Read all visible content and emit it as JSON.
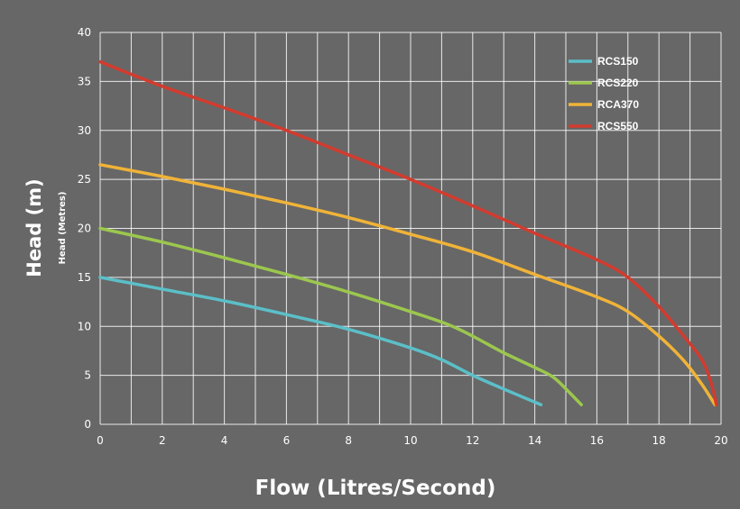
{
  "chart_data": {
    "type": "line",
    "xlabel": "Flow (Litres/Second)",
    "ylabel": "Head (m)",
    "ylabel_secondary": "Head (Metres)",
    "xlim": [
      0,
      20
    ],
    "ylim": [
      0,
      40
    ],
    "x_ticks": [
      0,
      2,
      4,
      6,
      8,
      10,
      12,
      14,
      16,
      18,
      20
    ],
    "y_ticks": [
      0,
      5,
      10,
      15,
      20,
      25,
      30,
      35,
      40
    ],
    "grid": true,
    "legend_position": "top-right",
    "series": [
      {
        "name": "RCS150",
        "color": "#5bbfc8",
        "points": [
          [
            0,
            15
          ],
          [
            2,
            13.8
          ],
          [
            4,
            12.6
          ],
          [
            6,
            11.2
          ],
          [
            8,
            9.7
          ],
          [
            10,
            7.8
          ],
          [
            11,
            6.6
          ],
          [
            12,
            5
          ],
          [
            13,
            3.6
          ],
          [
            14.2,
            2
          ]
        ]
      },
      {
        "name": "RCS220",
        "color": "#9cc74e",
        "points": [
          [
            0,
            20
          ],
          [
            2,
            18.6
          ],
          [
            4,
            17
          ],
          [
            6,
            15.3
          ],
          [
            8,
            13.5
          ],
          [
            10,
            11.5
          ],
          [
            11.2,
            10.2
          ],
          [
            12,
            9
          ],
          [
            13,
            7.3
          ],
          [
            14,
            5.8
          ],
          [
            14.6,
            4.8
          ],
          [
            15.1,
            3.3
          ],
          [
            15.5,
            2
          ]
        ]
      },
      {
        "name": "RCA370",
        "color": "#f0b338",
        "points": [
          [
            0,
            26.5
          ],
          [
            2,
            25.3
          ],
          [
            4,
            24
          ],
          [
            6,
            22.6
          ],
          [
            8,
            21.1
          ],
          [
            10,
            19.4
          ],
          [
            12,
            17.6
          ],
          [
            14,
            15.3
          ],
          [
            16,
            13
          ],
          [
            17,
            11.5
          ],
          [
            18,
            9
          ],
          [
            18.8,
            6.5
          ],
          [
            19.4,
            4
          ],
          [
            19.8,
            2
          ]
        ]
      },
      {
        "name": "RCS550",
        "color": "#d23b2e",
        "points": [
          [
            0,
            37
          ],
          [
            2,
            34.5
          ],
          [
            4,
            32.3
          ],
          [
            6,
            30
          ],
          [
            8,
            27.5
          ],
          [
            10,
            25
          ],
          [
            12,
            22.3
          ],
          [
            14,
            19.5
          ],
          [
            16,
            16.8
          ],
          [
            17,
            15
          ],
          [
            18,
            12
          ],
          [
            18.8,
            9
          ],
          [
            19.4,
            6.5
          ],
          [
            19.7,
            4
          ],
          [
            19.85,
            2
          ]
        ]
      }
    ]
  }
}
